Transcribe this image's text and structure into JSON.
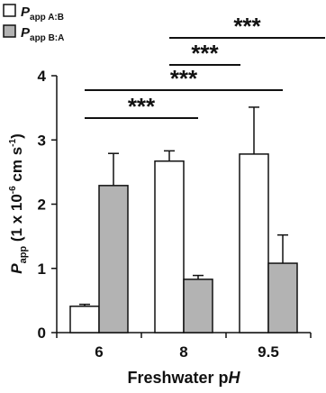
{
  "chart_data": {
    "type": "bar",
    "title": "",
    "xlabel": "Freshwater pH",
    "xlabel_parts": {
      "prefix": "Freshwater p",
      "italic": "H"
    },
    "ylabel": "Papp (1 x 10-6 cm s-1)",
    "ylabel_parts": {
      "symbol": "P",
      "subscript": "app",
      "unit_prefix": "(1 x 10",
      "unit_exponent_1": "-6",
      "unit_middle": " cm s",
      "unit_exponent_2": "-1",
      "unit_suffix": ")"
    },
    "categories": [
      "6",
      "8",
      "9.5"
    ],
    "ylim": [
      0,
      4
    ],
    "y_ticks": [
      0,
      1,
      2,
      3,
      4
    ],
    "series": [
      {
        "name": "Papp A:B",
        "legend_parts": {
          "symbol": "P",
          "subscript": "app A:B"
        },
        "color": "#ffffff",
        "values": [
          0.41,
          2.67,
          2.78
        ],
        "errors": [
          0.03,
          0.16,
          0.73
        ]
      },
      {
        "name": "Papp B:A",
        "legend_parts": {
          "symbol": "P",
          "subscript": "app B:A"
        },
        "color": "#b3b3b3",
        "values": [
          2.29,
          0.83,
          1.08
        ],
        "errors": [
          0.5,
          0.06,
          0.44
        ]
      }
    ],
    "legend_position": "top-left",
    "grid": false,
    "significance": [
      {
        "from": 0,
        "to": 1,
        "label": "***"
      },
      {
        "from": 0,
        "to": 2,
        "label": "***"
      },
      {
        "from": 1,
        "to": 1.5,
        "label": "***"
      },
      {
        "from": 1,
        "to": 2.5,
        "label": "***"
      }
    ]
  }
}
